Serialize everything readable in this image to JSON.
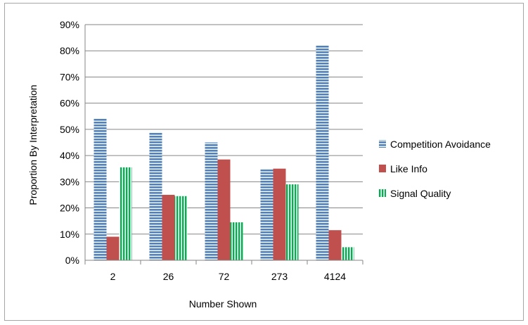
{
  "chart_data": {
    "type": "bar",
    "title": "",
    "xlabel": "Number Shown",
    "ylabel": "Proportion By Interpretation",
    "categories": [
      "2",
      "26",
      "72",
      "273",
      "4124"
    ],
    "ylim": [
      0,
      0.9
    ],
    "yticks": [
      0,
      0.1,
      0.2,
      0.3,
      0.4,
      0.5,
      0.6,
      0.7,
      0.8,
      0.9
    ],
    "ytick_labels": [
      "0%",
      "10%",
      "20%",
      "30%",
      "40%",
      "50%",
      "60%",
      "70%",
      "80%",
      "90%"
    ],
    "grid": true,
    "legend_position": "right",
    "series": [
      {
        "name": "Competition Avoidance",
        "color": "#4f81bd",
        "pattern": "horizontal-stripes",
        "values": [
          0.54,
          0.49,
          0.45,
          0.35,
          0.82
        ]
      },
      {
        "name": "Like Info",
        "color": "#c0504d",
        "pattern": "solid",
        "values": [
          0.09,
          0.25,
          0.385,
          0.35,
          0.115
        ]
      },
      {
        "name": "Signal Quality",
        "color": "#00b050",
        "pattern": "vertical-stripes",
        "values": [
          0.355,
          0.245,
          0.145,
          0.29,
          0.05
        ]
      }
    ]
  }
}
